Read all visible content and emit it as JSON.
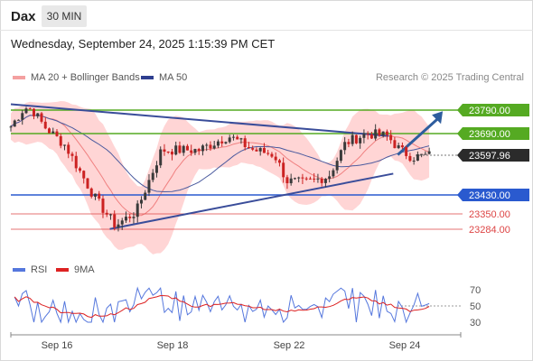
{
  "header": {
    "title": "Dax",
    "timeframe": "30 MIN"
  },
  "datetime": "Wednesday, September 24, 2025 1:15:39 PM CET",
  "legend": {
    "ma20": "MA 20 + Bollinger Bands",
    "ma50": "MA 50",
    "credit": "Research © 2025 Trading Central",
    "rsi": "RSI",
    "ma9": "9MA"
  },
  "colors": {
    "ma20": "#f08080",
    "bollinger_fill": "#ffc7c7",
    "ma50": "#4a5a9e",
    "up_candle": "#3a3a3a",
    "down_candle": "#cc2222",
    "resistance": "#55aa22",
    "support": "#2a5acf",
    "target_support": "#dd4444",
    "trendline": "#3a4d9a",
    "arrow": "#2e5d9e",
    "rsi": "#5577dd",
    "rsi_ma": "#dd2222"
  },
  "chart_data": {
    "type": "candlestick",
    "instrument": "Dax",
    "interval": "30 MIN",
    "y_range": [
      23150,
      23900
    ],
    "x_ticks": [
      "Sep 16",
      "Sep 18",
      "Sep 22",
      "Sep 24"
    ],
    "current_price": 23597.96,
    "levels": [
      {
        "label": "23790.00",
        "value": 23790,
        "kind": "resistance"
      },
      {
        "label": "23690.00",
        "value": 23690,
        "kind": "resistance"
      },
      {
        "label": "23597.96",
        "value": 23597.96,
        "kind": "last"
      },
      {
        "label": "23430.00",
        "value": 23430,
        "kind": "support"
      },
      {
        "label": "23350.00",
        "value": 23350,
        "kind": "target"
      },
      {
        "label": "23284.00",
        "value": 23284,
        "kind": "target"
      }
    ],
    "trendlines": [
      {
        "from": [
          0.0,
          23860
        ],
        "to": [
          0.84,
          23680
        ]
      },
      {
        "from": [
          0.22,
          23285
        ],
        "to": [
          0.85,
          23520
        ]
      }
    ],
    "projection": {
      "from": [
        0.86,
        23600
      ],
      "to": [
        0.96,
        23785
      ]
    },
    "rsi_panel": {
      "ticks": [
        70,
        50,
        30
      ],
      "range": [
        20,
        80
      ]
    }
  }
}
